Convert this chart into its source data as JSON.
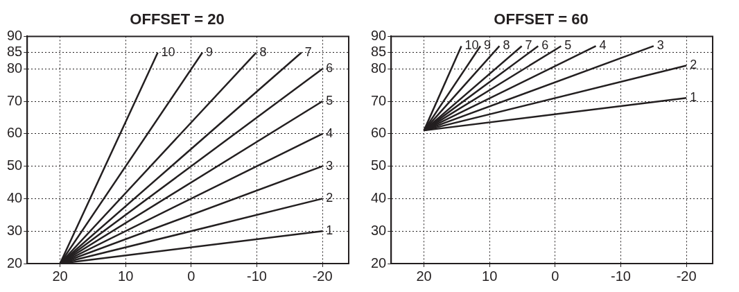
{
  "chart_data": [
    {
      "type": "line",
      "title": "OFFSET = 20",
      "xlim": [
        25,
        -24
      ],
      "xticks": [
        20,
        10,
        0,
        -10,
        -20
      ],
      "ylim": [
        20,
        90
      ],
      "yticks": [
        20,
        30,
        40,
        50,
        60,
        70,
        80,
        85,
        90
      ],
      "grid": true,
      "legend": false,
      "marker": "none",
      "line_style": "solid",
      "series": [
        {
          "name": "1",
          "color": "#231f20",
          "x": [
            20,
            -20
          ],
          "values": [
            20,
            30
          ]
        },
        {
          "name": "2",
          "color": "#231f20",
          "x": [
            20,
            -20
          ],
          "values": [
            20,
            40
          ]
        },
        {
          "name": "3",
          "color": "#231f20",
          "x": [
            20,
            -20
          ],
          "values": [
            20,
            50
          ]
        },
        {
          "name": "4",
          "color": "#231f20",
          "x": [
            20,
            -20
          ],
          "values": [
            20,
            60
          ]
        },
        {
          "name": "5",
          "color": "#231f20",
          "x": [
            20,
            -20
          ],
          "values": [
            20,
            70
          ]
        },
        {
          "name": "6",
          "color": "#231f20",
          "x": [
            20,
            -20
          ],
          "values": [
            20,
            80
          ]
        },
        {
          "name": "7",
          "color": "#231f20",
          "x": [
            20,
            -16.8
          ],
          "values": [
            20,
            85
          ]
        },
        {
          "name": "8",
          "color": "#231f20",
          "x": [
            20,
            -9.9
          ],
          "values": [
            20,
            85
          ]
        },
        {
          "name": "9",
          "color": "#231f20",
          "x": [
            20,
            -1.7
          ],
          "values": [
            20,
            85
          ]
        },
        {
          "name": "10",
          "color": "#231f20",
          "x": [
            20,
            5.1
          ],
          "values": [
            20,
            85
          ]
        }
      ]
    },
    {
      "type": "line",
      "title": "OFFSET = 60",
      "xlim": [
        25,
        -24
      ],
      "xticks": [
        20,
        10,
        0,
        -10,
        -20
      ],
      "ylim": [
        20,
        90
      ],
      "yticks": [
        20,
        30,
        40,
        50,
        60,
        70,
        80,
        85,
        90
      ],
      "grid": true,
      "legend": false,
      "marker": "none",
      "line_style": "solid",
      "series": [
        {
          "name": "1",
          "color": "#231f20",
          "x": [
            20,
            -20
          ],
          "values": [
            61,
            71
          ]
        },
        {
          "name": "2",
          "color": "#231f20",
          "x": [
            20,
            -20
          ],
          "values": [
            61,
            81
          ]
        },
        {
          "name": "3",
          "color": "#231f20",
          "x": [
            20,
            -15
          ],
          "values": [
            61,
            87
          ]
        },
        {
          "name": "4",
          "color": "#231f20",
          "x": [
            20,
            -6.2
          ],
          "values": [
            61,
            87
          ]
        },
        {
          "name": "5",
          "color": "#231f20",
          "x": [
            20,
            -0.9
          ],
          "values": [
            61,
            87
          ]
        },
        {
          "name": "6",
          "color": "#231f20",
          "x": [
            20,
            2.6
          ],
          "values": [
            61,
            87
          ]
        },
        {
          "name": "7",
          "color": "#231f20",
          "x": [
            20,
            5.1
          ],
          "values": [
            61,
            87
          ]
        },
        {
          "name": "8",
          "color": "#231f20",
          "x": [
            20,
            8.5
          ],
          "values": [
            61,
            87
          ]
        },
        {
          "name": "9",
          "color": "#231f20",
          "x": [
            20,
            11.4
          ],
          "values": [
            61,
            87
          ]
        },
        {
          "name": "10",
          "color": "#231f20",
          "x": [
            20,
            14.3
          ],
          "values": [
            61,
            87
          ]
        }
      ]
    }
  ]
}
